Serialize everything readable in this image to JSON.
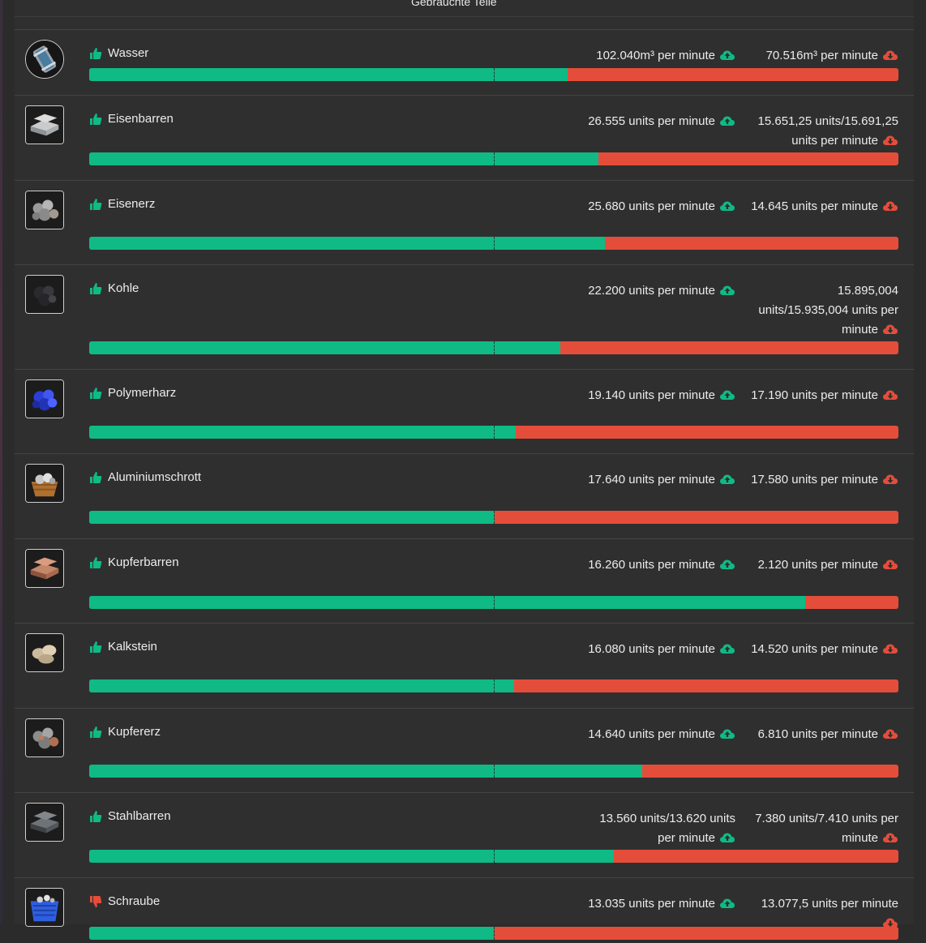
{
  "header": {
    "title": "Gebrauchte Teile"
  },
  "colors": {
    "production": "#0fba85",
    "consumption": "#e54d3b",
    "positive": "#0fba85",
    "negative": "#e54d3b"
  },
  "items": [
    {
      "name": "Wasser",
      "icon": "water-canister-icon",
      "status": "thumbs-up",
      "production": "102.040m³ per minute",
      "consumption": "70.516m³ per minute",
      "production_share": 0.591
    },
    {
      "name": "Eisenbarren",
      "icon": "iron-ingot-icon",
      "status": "thumbs-up",
      "production": "26.555 units per minute",
      "consumption": "15.651,25 units/15.691,25 units per minute",
      "production_share": 0.629
    },
    {
      "name": "Eisenerz",
      "icon": "iron-ore-icon",
      "status": "thumbs-up",
      "production": "25.680 units per minute",
      "consumption": "14.645 units per minute",
      "production_share": 0.637
    },
    {
      "name": "Kohle",
      "icon": "coal-icon",
      "status": "thumbs-up",
      "production": "22.200 units per minute",
      "consumption": "15.895,004 units/15.935,004 units per minute",
      "production_share": 0.582
    },
    {
      "name": "Polymerharz",
      "icon": "polymer-resin-icon",
      "status": "thumbs-up",
      "production": "19.140 units per minute",
      "consumption": "17.190 units per minute",
      "production_share": 0.527
    },
    {
      "name": "Aluminiumschrott",
      "icon": "aluminum-scrap-icon",
      "status": "thumbs-up",
      "production": "17.640 units per minute",
      "consumption": "17.580 units per minute",
      "production_share": 0.501
    },
    {
      "name": "Kupferbarren",
      "icon": "copper-ingot-icon",
      "status": "thumbs-up",
      "production": "16.260 units per minute",
      "consumption": "2.120 units per minute",
      "production_share": 0.885
    },
    {
      "name": "Kalkstein",
      "icon": "limestone-icon",
      "status": "thumbs-up",
      "production": "16.080 units per minute",
      "consumption": "14.520 units per minute",
      "production_share": 0.525
    },
    {
      "name": "Kupfererz",
      "icon": "copper-ore-icon",
      "status": "thumbs-up",
      "production": "14.640 units per minute",
      "consumption": "6.810 units per minute",
      "production_share": 0.683
    },
    {
      "name": "Stahlbarren",
      "icon": "steel-ingot-icon",
      "status": "thumbs-up",
      "production": "13.560 units/13.620 units per minute",
      "consumption": "7.380 units/7.410 units per minute",
      "production_share": 0.648
    },
    {
      "name": "Schraube",
      "icon": "screw-crate-icon",
      "status": "thumbs-down",
      "production": "13.035 units per minute",
      "consumption": "13.077,5 units per minute",
      "production_share": 0.499
    }
  ]
}
